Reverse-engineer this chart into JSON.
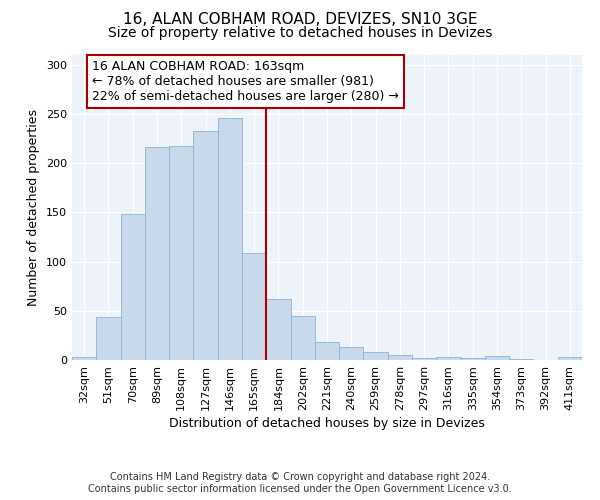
{
  "title_line1": "16, ALAN COBHAM ROAD, DEVIZES, SN10 3GE",
  "title_line2": "Size of property relative to detached houses in Devizes",
  "xlabel": "Distribution of detached houses by size in Devizes",
  "ylabel": "Number of detached properties",
  "bar_color": "#c9d9ec",
  "bar_edgecolor": "#8ab4d4",
  "line_color": "#aa0000",
  "annotation_text": "16 ALAN COBHAM ROAD: 163sqm\n← 78% of detached houses are smaller (981)\n22% of semi-detached houses are larger (280) →",
  "categories": [
    "32sqm",
    "51sqm",
    "70sqm",
    "89sqm",
    "108sqm",
    "127sqm",
    "146sqm",
    "165sqm",
    "184sqm",
    "202sqm",
    "221sqm",
    "240sqm",
    "259sqm",
    "278sqm",
    "297sqm",
    "316sqm",
    "335sqm",
    "354sqm",
    "373sqm",
    "392sqm",
    "411sqm"
  ],
  "values": [
    3,
    44,
    148,
    216,
    218,
    233,
    246,
    109,
    62,
    45,
    18,
    13,
    8,
    5,
    2,
    3,
    2,
    4,
    1,
    0,
    3
  ],
  "ylim": [
    0,
    310
  ],
  "yticks": [
    0,
    50,
    100,
    150,
    200,
    250,
    300
  ],
  "vline_position": 7.5,
  "footer_text": "Contains HM Land Registry data © Crown copyright and database right 2024.\nContains public sector information licensed under the Open Government Licence v3.0.",
  "bg_color": "#eef2f9",
  "grid_color": "#ffffff",
  "title_fontsize": 11,
  "subtitle_fontsize": 10,
  "xlabel_fontsize": 9,
  "ylabel_fontsize": 9,
  "tick_fontsize": 8,
  "footer_fontsize": 7,
  "ann_fontsize": 9
}
